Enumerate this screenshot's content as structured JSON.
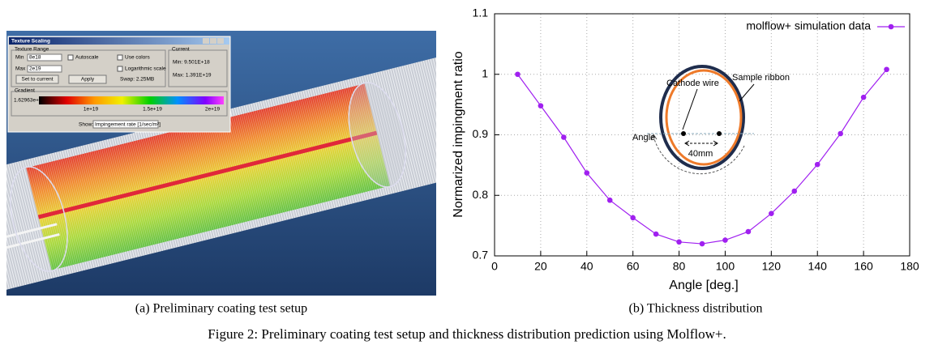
{
  "left_panel": {
    "window_title": "Texture Scaling",
    "texture_range": "Texture Range",
    "min_label": "Min",
    "min_value": "8e18",
    "max_label": "Max",
    "max_value": "2e19",
    "autoscale": "Autoscale",
    "use_colors": "Use colors",
    "log_scale": "Logarithmic scale",
    "current": "Current",
    "current_min": "Min: 9.501E+18",
    "current_max": "Max: 1.391E+19",
    "set_to_current": "Set to current",
    "apply": "Apply",
    "swap": "Swap: 2.25MB",
    "gradient": "Gradient",
    "gradient_start": "1.62963e+1",
    "gradient_ticks": [
      "1e+19",
      "1.5e+19",
      "2e+19"
    ],
    "show_label": "Show:",
    "show_value": "Impingement rate [1/sec/m²]"
  },
  "chart_data": {
    "type": "line",
    "x_label": "Angle [deg.]",
    "y_label": "Normarized impingment ratio",
    "x": [
      10,
      20,
      30,
      40,
      50,
      60,
      70,
      80,
      90,
      100,
      110,
      120,
      130,
      140,
      150,
      160,
      170
    ],
    "series": [
      {
        "name": "molflow+ simulation data",
        "color": "#a020f0",
        "values": [
          1.0,
          0.948,
          0.896,
          0.837,
          0.792,
          0.763,
          0.736,
          0.723,
          0.72,
          0.726,
          0.74,
          0.77,
          0.807,
          0.851,
          0.902,
          0.962,
          1.008
        ]
      }
    ],
    "xlim": [
      0,
      180
    ],
    "xticks": [
      0,
      20,
      40,
      60,
      80,
      100,
      120,
      140,
      160,
      180
    ],
    "ylim": [
      0.7,
      1.1
    ],
    "yticks": [
      0.7,
      0.8,
      0.9,
      1,
      1.1
    ],
    "grid": true,
    "legend": "upper right",
    "annotations": [
      "Cathode wire",
      "Sample ribbon",
      "40mm",
      "Angle"
    ]
  },
  "captions": {
    "a": "(a) Preliminary coating test setup",
    "b": "(b) Thickness distribution",
    "figure": "Figure 2: Preliminary coating test setup and thickness distribution prediction using Molflow+."
  }
}
